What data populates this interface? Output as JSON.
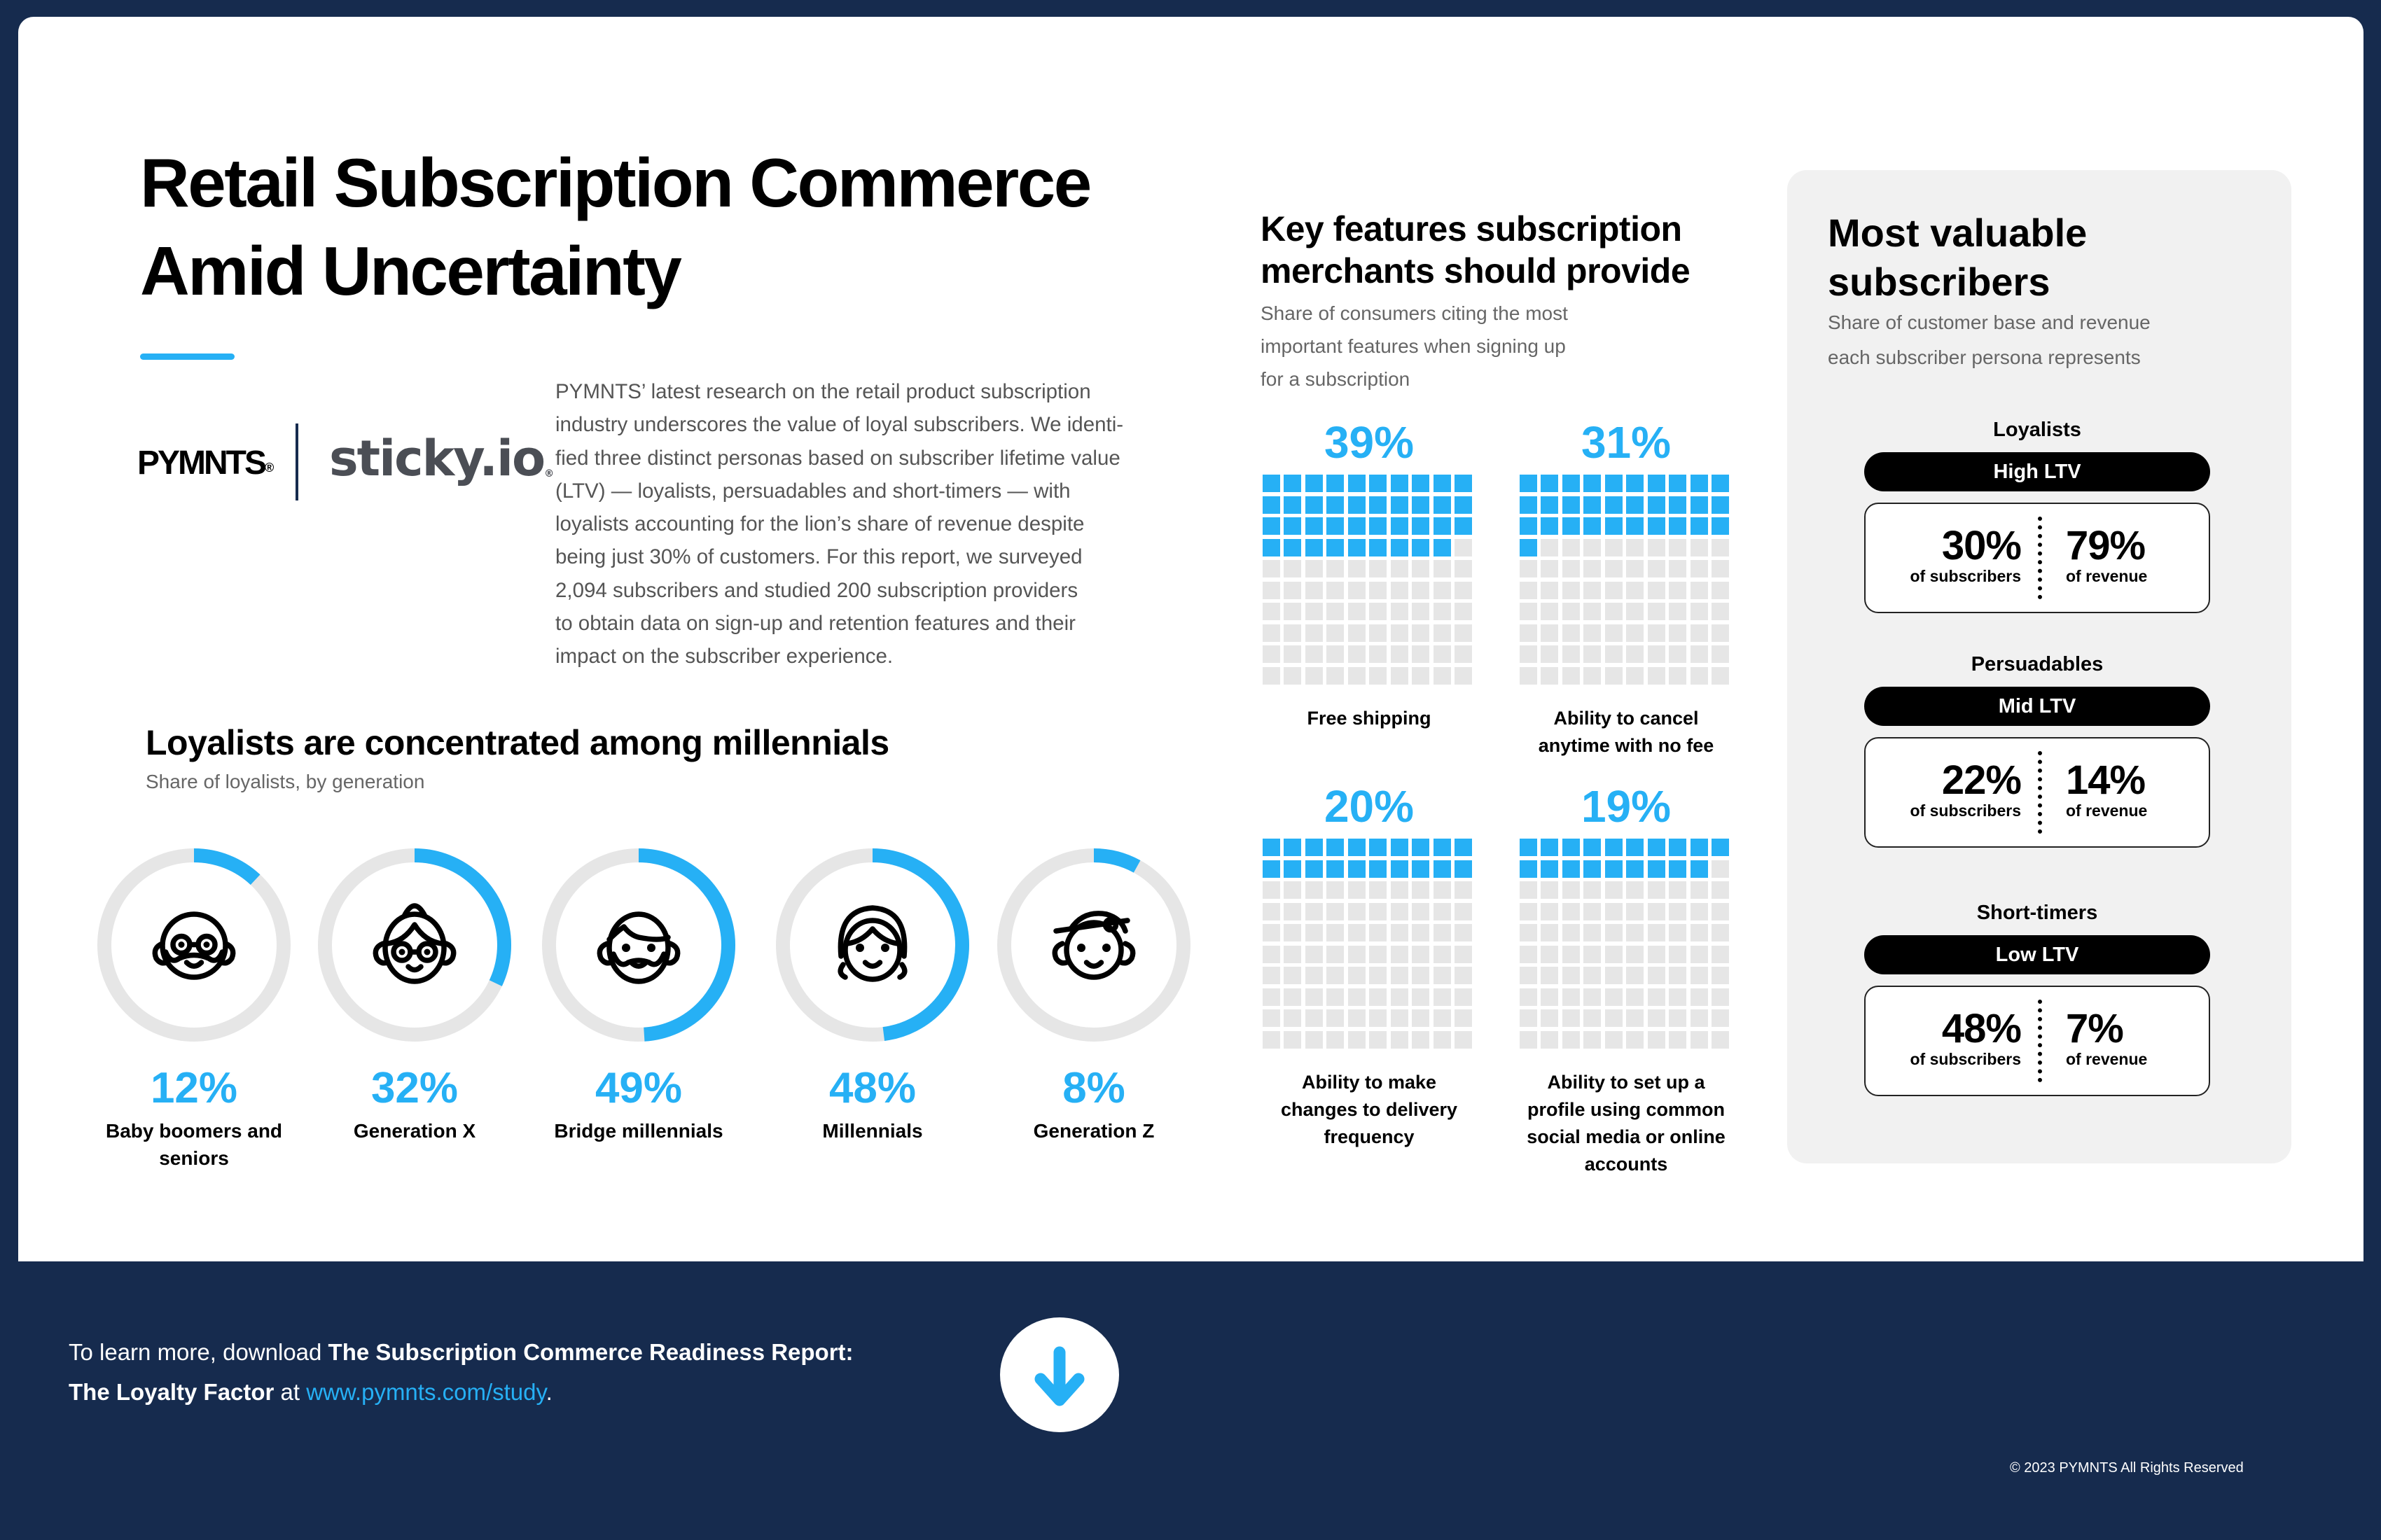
{
  "header": {
    "title_line1": "Retail Subscription Commerce",
    "title_line2": "Amid Uncertainty",
    "accent_color": "#26b0f5"
  },
  "logos": {
    "pymnts": "PYMNTS",
    "pymnts_mark": "®",
    "sticky": "sticky.io",
    "sticky_mark": "®"
  },
  "intro": {
    "lines": [
      "PYMNTS’ latest research on the retail product subscription",
      "industry underscores the value of loyal subscribers. We identi-",
      "fied three distinct personas based on subscriber lifetime value",
      "(LTV) — loyalists, persuadables and short-timers — with",
      "loyalists accounting for the lion’s share of revenue despite",
      "being just 30% of customers. For this report, we surveyed",
      "2,094 subscribers and studied 200 subscription providers",
      "to obtain data on sign-up and retention features and their",
      "impact on the subscriber experience."
    ]
  },
  "generations": {
    "title": "Loyalists are concentrated among millennials",
    "subtitle": "Share of loyalists, by generation",
    "items": [
      {
        "label_line1": "Baby boomers and",
        "label_line2": "seniors",
        "value": 12,
        "display": "12%",
        "icon": "elderly-face-icon"
      },
      {
        "label_line1": "Generation X",
        "label_line2": "",
        "value": 32,
        "display": "32%",
        "icon": "woman-glasses-face-icon"
      },
      {
        "label_line1": "Bridge millennials",
        "label_line2": "",
        "value": 49,
        "display": "49%",
        "icon": "bearded-face-icon"
      },
      {
        "label_line1": "Millennials",
        "label_line2": "",
        "value": 48,
        "display": "48%",
        "icon": "headphones-face-icon"
      },
      {
        "label_line1": "Generation Z",
        "label_line2": "",
        "value": 8,
        "display": "8%",
        "icon": "cap-face-icon"
      }
    ]
  },
  "features": {
    "title_line1": "Key features subscription",
    "title_line2": "merchants should provide",
    "subtitle_lines": [
      "Share of consumers citing the most",
      "important features when signing up",
      "for a subscription"
    ],
    "items": [
      {
        "value": 39,
        "display": "39%",
        "label_lines": [
          "Free shipping"
        ]
      },
      {
        "value": 31,
        "display": "31%",
        "label_lines": [
          "Ability to cancel",
          "anytime with no fee"
        ]
      },
      {
        "value": 20,
        "display": "20%",
        "label_lines": [
          "Ability to make",
          "changes to delivery",
          "frequency"
        ]
      },
      {
        "value": 19,
        "display": "19%",
        "label_lines": [
          "Ability to set up a",
          "profile using common",
          "social media or online",
          "accounts"
        ]
      }
    ]
  },
  "subscribers": {
    "title_line1": "Most valuable",
    "title_line2": "subscribers",
    "subtitle_line1": "Share of customer base and revenue",
    "subtitle_line2": "each subscriber persona represents",
    "personas": [
      {
        "name": "Loyalists",
        "tier": "High LTV",
        "subscribers": "30%",
        "subscribers_label": "of subscribers",
        "revenue": "79%",
        "revenue_label": "of revenue"
      },
      {
        "name": "Persuadables",
        "tier": "Mid LTV",
        "subscribers": "22%",
        "subscribers_label": "of subscribers",
        "revenue": "14%",
        "revenue_label": "of revenue"
      },
      {
        "name": "Short-timers",
        "tier": "Low LTV",
        "subscribers": "48%",
        "subscribers_label": "of subscribers",
        "revenue": "7%",
        "revenue_label": "of revenue"
      }
    ]
  },
  "footer": {
    "pre": "To learn more, download ",
    "report_line1": "The Subscription Commerce Readiness Report:",
    "report_line2": "The Loyalty Factor",
    "at": " at ",
    "link": "www.pymnts.com/study",
    "period": ".",
    "download_icon": "download-arrow-icon",
    "copyright": "© 2023 PYMNTS All Rights Reserved"
  },
  "colors": {
    "navy": "#162b4e",
    "blue": "#26b0f5",
    "track": "#e6e6e6",
    "panel": "#f1f1f1"
  }
}
